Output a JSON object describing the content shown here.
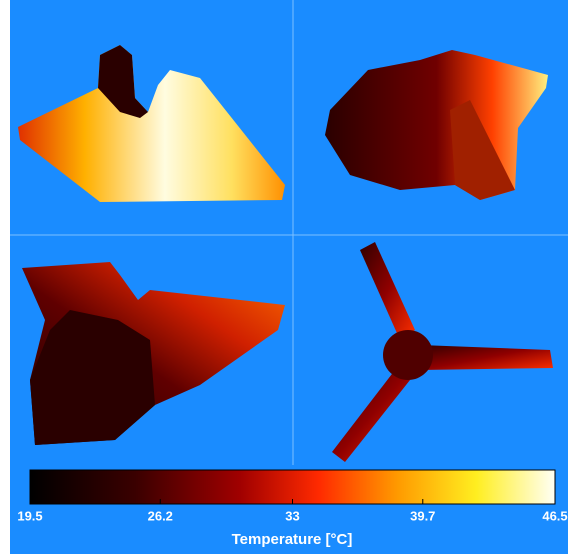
{
  "colorbar": {
    "label": "Temperature [°C]",
    "lim": [
      19.5,
      46.5
    ],
    "ticks": [
      19.5,
      26.2,
      33,
      39.7,
      46.5
    ]
  }
}
